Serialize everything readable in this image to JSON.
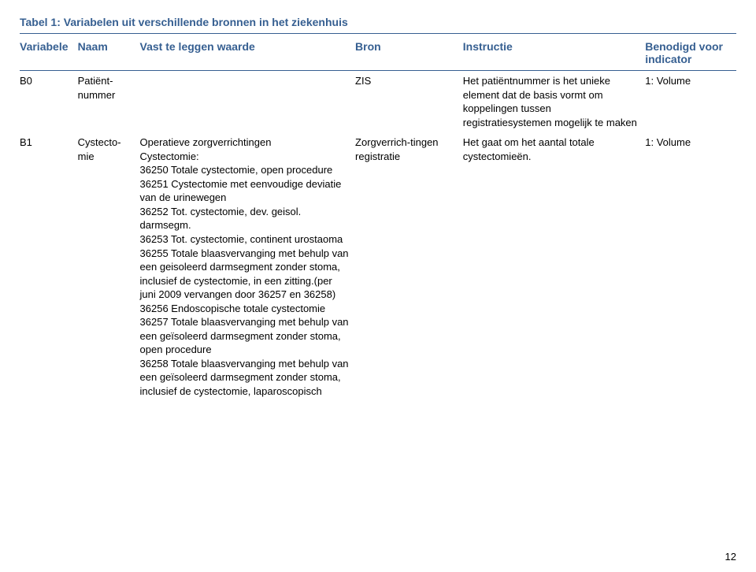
{
  "colors": {
    "heading": "#365f91",
    "text": "#000000",
    "background": "#ffffff",
    "rule": "#365f91"
  },
  "typography": {
    "heading_fontsize_pt": 11,
    "body_fontsize_pt": 10,
    "font_family": "Arial"
  },
  "caption": "Tabel 1: Variabelen uit verschillende bronnen in het ziekenhuis",
  "headers": {
    "variabele": "Variabele",
    "naam": "Naam",
    "waarde": "Vast te leggen waarde",
    "bron": "Bron",
    "instructie": "Instructie",
    "indicator": "Benodigd voor indicator"
  },
  "rows": [
    {
      "variabele": "B0",
      "naam": "Patiënt-nummer",
      "waarde": "",
      "bron": "ZIS",
      "instructie": "Het patiëntnummer is het unieke element dat de basis vormt om koppelingen tussen registratiesystemen mogelijk te maken",
      "indicator": "1: Volume"
    },
    {
      "variabele": "B1",
      "naam": "Cystecto-mie",
      "waarde": "Operatieve zorgverrichtingen\nCystectomie:\n36250   Totale cystectomie, open procedure\n36251 Cystectomie met eenvoudige deviatie van de urinewegen\n36252   Tot. cystectomie, dev. geisol. darmsegm.\n36253   Tot. cystectomie, continent urostaoma\n36255 Totale blaasvervanging met behulp van een geisoleerd darmsegment zonder stoma, inclusief de cystectomie, in een zitting.(per juni 2009 vervangen door 36257 en 36258)\n36256   Endoscopische totale cystectomie\n36257   Totale blaasvervanging met behulp van een geïsoleerd darmsegment zonder stoma, open procedure\n36258   Totale blaasvervanging met behulp van een geïsoleerd darmsegment zonder stoma, inclusief de cystectomie, laparoscopisch",
      "bron": "Zorgverrich-tingen registratie",
      "instructie": "Het gaat om het aantal totale cystectomieën.",
      "indicator": "1: Volume"
    }
  ],
  "page_number": "12"
}
